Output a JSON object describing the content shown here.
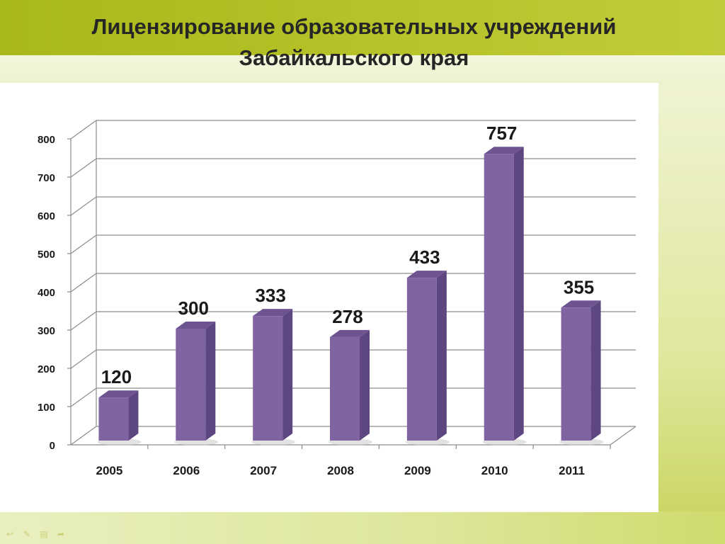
{
  "slide": {
    "title_line1": "Лицензирование образовательных учреждений",
    "title_line2": "Забайкальского края"
  },
  "colors": {
    "bar_front": "#8064a2",
    "bar_side": "#5e4780",
    "bar_top": "#6d5491",
    "grid": "#8c8c8c",
    "text": "#1a1a1a"
  },
  "chart_data": {
    "type": "bar",
    "title": "",
    "xlabel": "",
    "ylabel": "",
    "categories": [
      "2005",
      "2006",
      "2007",
      "2008",
      "2009",
      "2010",
      "2011"
    ],
    "values": [
      120,
      300,
      333,
      278,
      433,
      757,
      355
    ],
    "data_labels": [
      "120",
      "300",
      "333",
      "278",
      "433",
      "757",
      "355"
    ],
    "ylim": [
      0,
      800
    ],
    "yticks": [
      0,
      100,
      200,
      300,
      400,
      500,
      600,
      700,
      800
    ],
    "grid": true,
    "legend": "none",
    "style": "3d-column"
  },
  "nav_icons": [
    "prev-arrow-icon",
    "pen-icon",
    "menu-icon",
    "next-arrow-icon"
  ]
}
